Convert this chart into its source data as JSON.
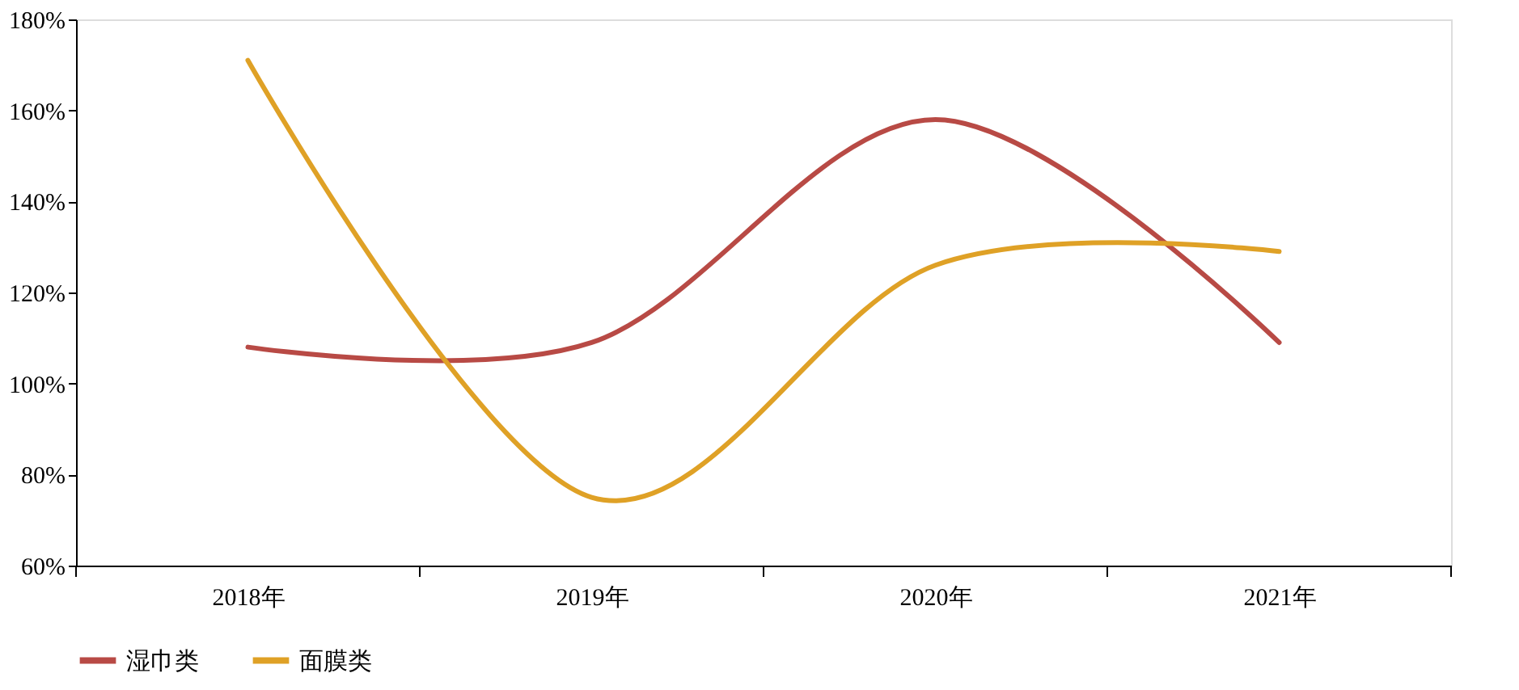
{
  "chart_data": {
    "type": "line",
    "categories": [
      "2018年",
      "2019年",
      "2020年",
      "2021年"
    ],
    "series": [
      {
        "name": "湿巾类",
        "color": "#b84a45",
        "values": [
          108,
          109,
          158,
          109
        ]
      },
      {
        "name": "面膜类",
        "color": "#dfa126",
        "values": [
          171,
          75,
          126,
          129
        ]
      }
    ],
    "ylim": [
      60,
      180
    ],
    "yticks": [
      {
        "value": 60,
        "label": "60%"
      },
      {
        "value": 80,
        "label": "80%"
      },
      {
        "value": 100,
        "label": "100%"
      },
      {
        "value": 120,
        "label": "120%"
      },
      {
        "value": 140,
        "label": "140%"
      },
      {
        "value": 160,
        "label": "160%"
      },
      {
        "value": 180,
        "label": "180%"
      }
    ],
    "grid": false,
    "legend": "bottom",
    "marker": "none",
    "line_style": "solid"
  }
}
